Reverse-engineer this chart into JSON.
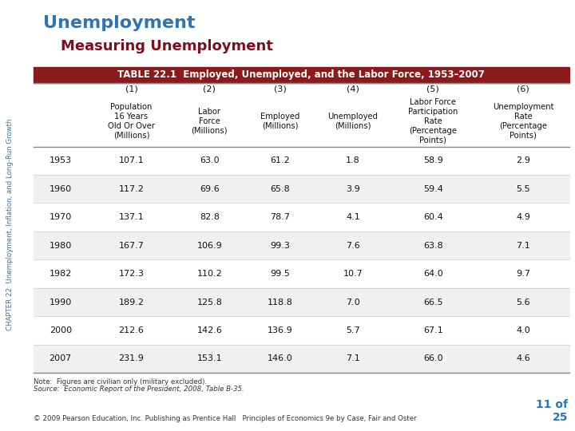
{
  "title1": "Unemployment",
  "title2": "Measuring Unemployment",
  "table_title": "TABLE 22.1  Employed, Unemployed, and the Labor Force, 1953–2007",
  "col_numbers": [
    "(1)",
    "(2)",
    "(3)",
    "(4)",
    "(5)",
    "(6)"
  ],
  "col_headers": [
    "Population\n16 Years\nOld Or Over\n(Millions)",
    "Labor\nForce\n(Millions)",
    "Employed\n(Millions)",
    "Unemployed\n(Millions)",
    "Labor Force\nParticipation\nRate\n(Percentage\nPoints)",
    "Unemployment\nRate\n(Percentage\nPoints)"
  ],
  "years": [
    "1953",
    "1960",
    "1970",
    "1980",
    "1982",
    "1990",
    "2000",
    "2007"
  ],
  "data": [
    [
      107.1,
      63.0,
      61.2,
      1.8,
      58.9,
      2.9
    ],
    [
      117.2,
      69.6,
      65.8,
      3.9,
      59.4,
      5.5
    ],
    [
      137.1,
      82.8,
      78.7,
      4.1,
      60.4,
      4.9
    ],
    [
      167.7,
      106.9,
      99.3,
      7.6,
      63.8,
      7.1
    ],
    [
      172.3,
      110.2,
      99.5,
      10.7,
      64.0,
      9.7
    ],
    [
      189.2,
      125.8,
      118.8,
      7.0,
      66.5,
      5.6
    ],
    [
      212.6,
      142.6,
      136.9,
      5.7,
      67.1,
      4.0
    ],
    [
      231.9,
      153.1,
      146.0,
      7.1,
      66.0,
      4.6
    ]
  ],
  "note": "Note:  Figures are civilian only (military excluded).",
  "source": "Source:  Economic Report of the President, 2008, Table B-35.",
  "footer": "© 2009 Pearson Education, Inc. Publishing as Prentice Hall   Principles of Economics 9e by Case, Fair and Oster",
  "page_line1": "11 of",
  "page_line2": "25",
  "title1_color": "#2E74B5",
  "title2_color": "#7B1020",
  "table_header_bg": "#8B1A1A",
  "table_header_fg": "#FFFFFF",
  "sidebar_text": "CHAPTER 22  Unemployment, Inflation, and Long-Run Growth",
  "sidebar_color": "#2E74B5",
  "page_color": "#2E74B5",
  "bg_color": "#FFFFFF",
  "row_alt_color": "#F0F0F0",
  "row_color": "#FFFFFF",
  "line_color": "#888888",
  "thin_line_color": "#CCCCCC",
  "text_color": "#111111",
  "note_color": "#333333"
}
